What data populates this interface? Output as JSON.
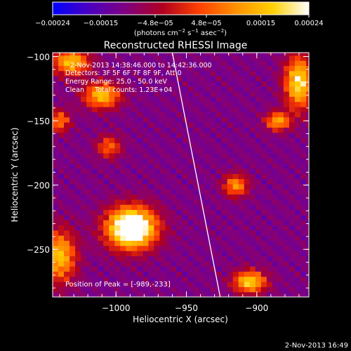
{
  "chart_data": {
    "type": "heatmap",
    "title": "Reconstructed RHESSI Image",
    "xlabel": "Heliocentric X (arcsec)",
    "ylabel": "Heliocentric Y (arcsec)",
    "xlim": [
      -1045,
      -863
    ],
    "ylim": [
      -287,
      -97
    ],
    "x_ticks": [
      {
        "value": -1000,
        "label": "−1000"
      },
      {
        "value": -950,
        "label": "−950"
      },
      {
        "value": -900,
        "label": "−900"
      }
    ],
    "y_ticks": [
      {
        "value": -100,
        "label": "−100"
      },
      {
        "value": -150,
        "label": "−150"
      },
      {
        "value": -200,
        "label": "−200"
      },
      {
        "value": -250,
        "label": "−250"
      }
    ],
    "colorbar": {
      "range": [
        -0.00024,
        0.00024
      ],
      "ticks": [
        {
          "value": -0.00024,
          "label": "−0.00024"
        },
        {
          "value": -0.00015,
          "label": "−0.00015"
        },
        {
          "value": -4.8e-05,
          "label": "−4.8e−05"
        },
        {
          "value": 4.8e-05,
          "label": "4.8e−05"
        },
        {
          "value": 0.00015,
          "label": "0.00015"
        },
        {
          "value": 0.00024,
          "label": "0.00024"
        }
      ],
      "units_main": "(photons cm",
      "units_exp1": "−2",
      "units_mid": " s",
      "units_exp2": "−1",
      "units_tail": " asec",
      "units_exp3": "−2",
      "units_close": ")",
      "colors": [
        "#0000ff",
        "#4b00c0",
        "#800080",
        "#b00020",
        "#ff4000",
        "#ff9000",
        "#ffd000",
        "#ffffff"
      ]
    },
    "annotations": [
      "2-Nov-2013 14:38:46.000 to 14:42:36.000",
      "Detectors: 3F 5F 6F 7F 8F 9F, Att 0",
      "Energy Range: 25.0 - 50.0 keV",
      "Clean     Total counts: 1.23E+04"
    ],
    "peak_label": "Position of Peak = [-989,-233]",
    "limb_line": [
      {
        "x": -960,
        "y": -97
      },
      {
        "x": -926,
        "y": -287
      }
    ],
    "sources": [
      {
        "x": -989,
        "y": -233,
        "sx": 12,
        "sy": 11,
        "amp": 1.0
      },
      {
        "x": -1032,
        "y": -104,
        "sx": 9,
        "sy": 7,
        "amp": 0.55
      },
      {
        "x": -1010,
        "y": -130,
        "sx": 9,
        "sy": 7,
        "amp": 0.55
      },
      {
        "x": -1040,
        "y": -150,
        "sx": 5,
        "sy": 6,
        "amp": 0.4
      },
      {
        "x": -870,
        "y": -120,
        "sx": 7,
        "sy": 14,
        "amp": 0.65
      },
      {
        "x": -885,
        "y": -150,
        "sx": 6,
        "sy": 5,
        "amp": 0.5
      },
      {
        "x": -915,
        "y": -200,
        "sx": 6,
        "sy": 6,
        "amp": 0.45
      },
      {
        "x": -905,
        "y": -275,
        "sx": 8,
        "sy": 6,
        "amp": 0.6
      },
      {
        "x": -1040,
        "y": -255,
        "sx": 8,
        "sy": 14,
        "amp": 0.55
      },
      {
        "x": -1005,
        "y": -170,
        "sx": 6,
        "sy": 6,
        "amp": 0.35
      }
    ]
  },
  "footer": {
    "timestamp": "2-Nov-2013 16:49"
  }
}
